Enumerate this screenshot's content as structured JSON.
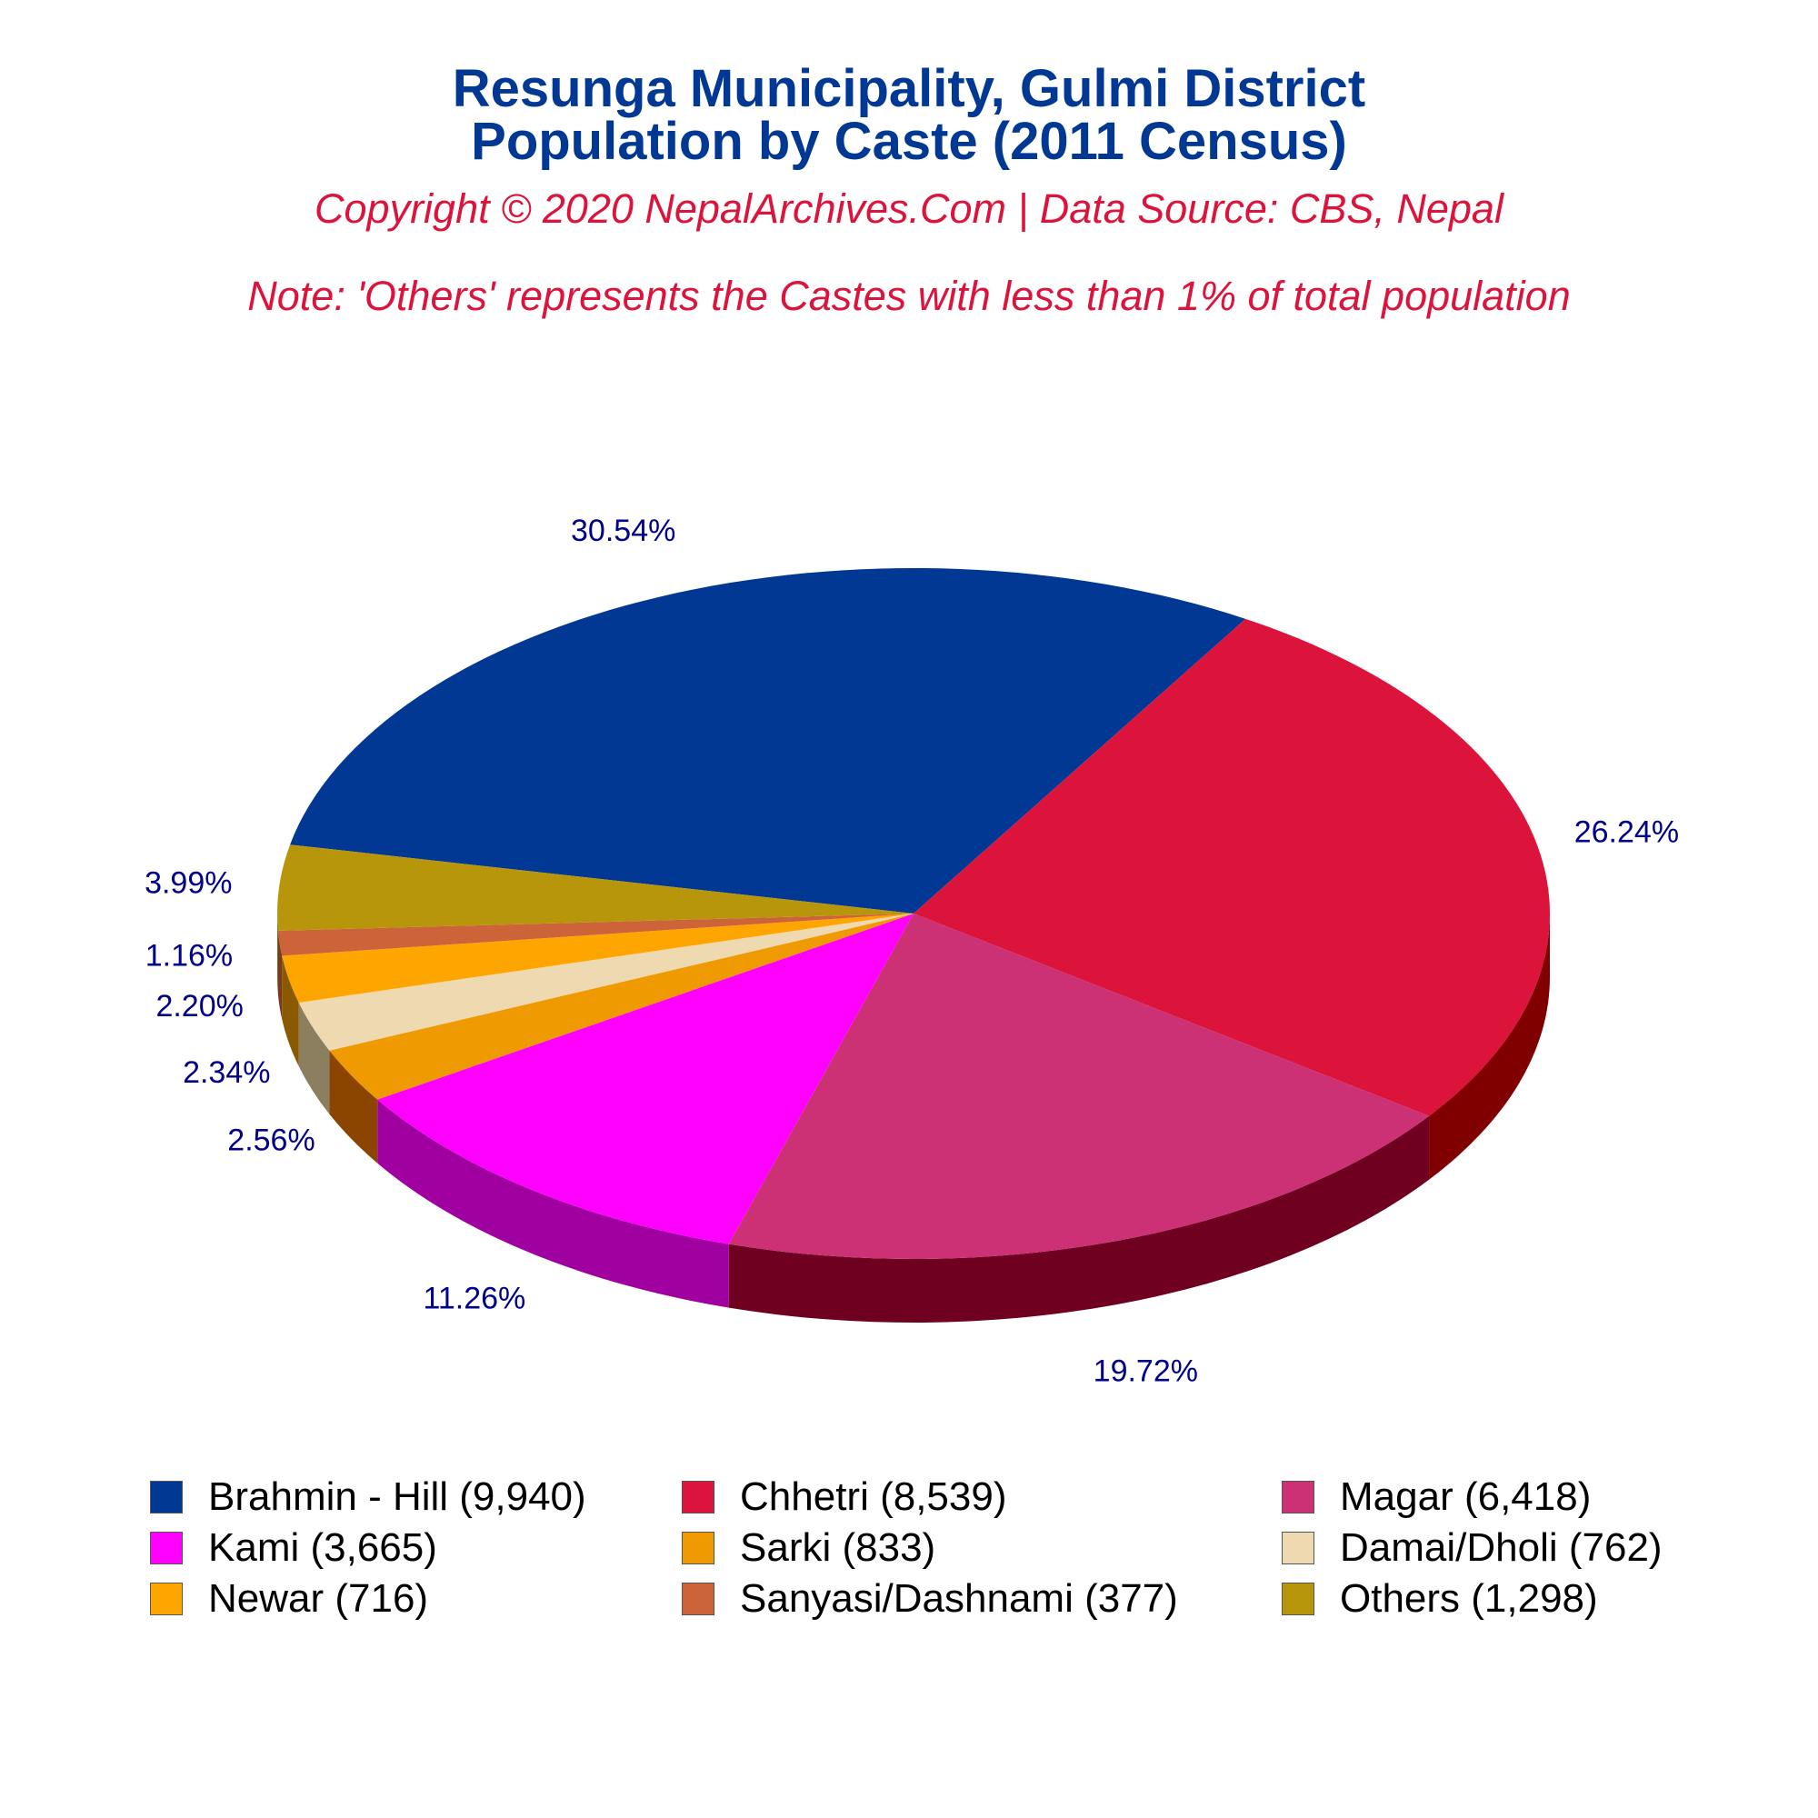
{
  "header": {
    "title_line1": "Resunga Municipality, Gulmi District",
    "title_line2": "Population by Caste (2011 Census)",
    "copyright": "Copyright © 2020 NepalArchives.Com | Data Source: CBS, Nepal",
    "note": "Note: 'Others' represents the Castes with less than 1% of total population"
  },
  "chart_data": {
    "type": "pie",
    "title": "Resunga Municipality, Gulmi District Population by Caste (2011 Census)",
    "legend_position": "bottom",
    "slices": [
      {
        "name": "Brahmin - Hill",
        "value": 9940,
        "percent": "30.54%",
        "legend": "Brahmin - Hill (9,940)",
        "color": "#003893",
        "side": "#00205a"
      },
      {
        "name": "Chhetri",
        "value": 8539,
        "percent": "26.24%",
        "legend": "Chhetri (8,539)",
        "color": "#DC143C",
        "side": "#800000"
      },
      {
        "name": "Magar",
        "value": 6418,
        "percent": "19.72%",
        "legend": "Magar (6,418)",
        "color": "#CC3175",
        "side": "#700020"
      },
      {
        "name": "Kami",
        "value": 3665,
        "percent": "11.26%",
        "legend": "Kami (3,665)",
        "color": "#FF00FF",
        "side": "#A000A0"
      },
      {
        "name": "Sarki",
        "value": 833,
        "percent": "2.56%",
        "legend": "Sarki (833)",
        "color": "#EE9A00",
        "side": "#8B4500"
      },
      {
        "name": "Damai/Dholi",
        "value": 762,
        "percent": "2.34%",
        "legend": "Damai/Dholi (762)",
        "color": "#EED9B0",
        "side": "#8B7F60"
      },
      {
        "name": "Newar",
        "value": 716,
        "percent": "2.20%",
        "legend": "Newar (716)",
        "color": "#FFA500",
        "side": "#8B5A00"
      },
      {
        "name": "Sanyasi/Dashnami",
        "value": 377,
        "percent": "1.16%",
        "legend": "Sanyasi/Dashnami (377)",
        "color": "#CD6439",
        "side": "#7A3A20"
      },
      {
        "name": "Others",
        "value": 1298,
        "percent": "3.99%",
        "legend": "Others (1,298)",
        "color": "#B8960B",
        "side": "#6B5800"
      }
    ]
  }
}
